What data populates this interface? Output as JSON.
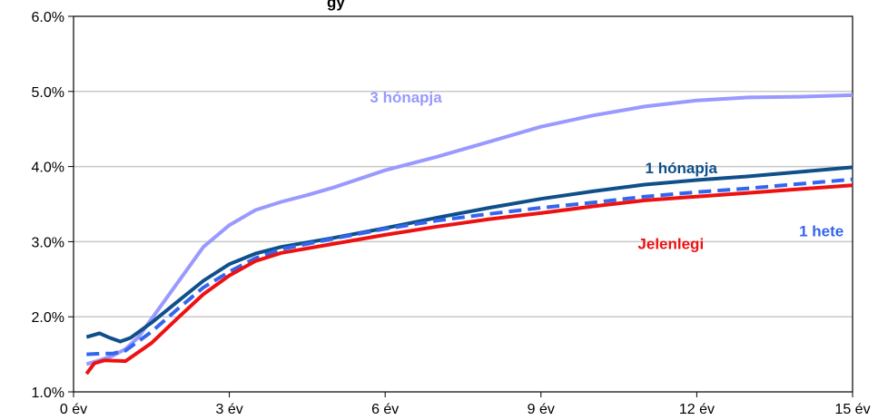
{
  "chart_data": {
    "type": "line",
    "title_fragment": "gy",
    "xlabel": "",
    "ylabel": "",
    "x_ticks": [
      "0 év",
      "3 év",
      "6 év",
      "9 év",
      "12 év",
      "15 év"
    ],
    "y_ticks": [
      "1.0%",
      "2.0%",
      "3.0%",
      "4.0%",
      "5.0%",
      "6.0%"
    ],
    "xlim": [
      0,
      15
    ],
    "ylim": [
      1.0,
      6.0
    ],
    "grid": "horizontal",
    "legend": "none (inline labels)",
    "series": [
      {
        "name": "3 hónapja",
        "color": "#9999ff",
        "dash": "solid",
        "points": [
          [
            0.25,
            1.37
          ],
          [
            0.5,
            1.42
          ],
          [
            0.75,
            1.48
          ],
          [
            1.0,
            1.57
          ],
          [
            1.25,
            1.73
          ],
          [
            1.5,
            1.97
          ],
          [
            2.0,
            2.45
          ],
          [
            2.5,
            2.93
          ],
          [
            3.0,
            3.22
          ],
          [
            3.5,
            3.42
          ],
          [
            4.0,
            3.53
          ],
          [
            4.5,
            3.62
          ],
          [
            5.0,
            3.72
          ],
          [
            6.0,
            3.95
          ],
          [
            7.0,
            4.13
          ],
          [
            8.0,
            4.33
          ],
          [
            9.0,
            4.53
          ],
          [
            10.0,
            4.68
          ],
          [
            11.0,
            4.8
          ],
          [
            12.0,
            4.88
          ],
          [
            13.0,
            4.92
          ],
          [
            14.0,
            4.93
          ],
          [
            15.0,
            4.95
          ]
        ]
      },
      {
        "name": "1 hónapja",
        "color": "#0f4f8a",
        "dash": "solid",
        "points": [
          [
            0.25,
            1.73
          ],
          [
            0.5,
            1.78
          ],
          [
            0.7,
            1.72
          ],
          [
            0.9,
            1.67
          ],
          [
            1.1,
            1.72
          ],
          [
            1.5,
            1.92
          ],
          [
            2.0,
            2.2
          ],
          [
            2.5,
            2.48
          ],
          [
            3.0,
            2.7
          ],
          [
            3.5,
            2.84
          ],
          [
            4.0,
            2.93
          ],
          [
            5.0,
            3.05
          ],
          [
            6.0,
            3.18
          ],
          [
            7.0,
            3.32
          ],
          [
            8.0,
            3.45
          ],
          [
            9.0,
            3.57
          ],
          [
            10.0,
            3.67
          ],
          [
            11.0,
            3.76
          ],
          [
            12.0,
            3.82
          ],
          [
            13.0,
            3.87
          ],
          [
            14.0,
            3.93
          ],
          [
            15.0,
            3.99
          ]
        ]
      },
      {
        "name": "1 hete",
        "color": "#3366ee",
        "dash": "dashed",
        "points": [
          [
            0.25,
            1.5
          ],
          [
            0.5,
            1.51
          ],
          [
            0.75,
            1.51
          ],
          [
            1.0,
            1.55
          ],
          [
            1.5,
            1.8
          ],
          [
            2.0,
            2.1
          ],
          [
            2.5,
            2.39
          ],
          [
            3.0,
            2.6
          ],
          [
            3.5,
            2.78
          ],
          [
            4.0,
            2.9
          ],
          [
            5.0,
            3.04
          ],
          [
            6.0,
            3.17
          ],
          [
            7.0,
            3.28
          ],
          [
            8.0,
            3.37
          ],
          [
            9.0,
            3.45
          ],
          [
            10.0,
            3.52
          ],
          [
            11.0,
            3.6
          ],
          [
            12.0,
            3.66
          ],
          [
            13.0,
            3.71
          ],
          [
            14.0,
            3.77
          ],
          [
            15.0,
            3.83
          ]
        ]
      },
      {
        "name": "Jelenlegi",
        "color": "#ee1111",
        "dash": "solid",
        "points": [
          [
            0.25,
            1.24
          ],
          [
            0.4,
            1.38
          ],
          [
            0.6,
            1.42
          ],
          [
            1.0,
            1.41
          ],
          [
            1.5,
            1.65
          ],
          [
            2.0,
            1.98
          ],
          [
            2.5,
            2.3
          ],
          [
            3.0,
            2.55
          ],
          [
            3.5,
            2.74
          ],
          [
            4.0,
            2.85
          ],
          [
            5.0,
            2.97
          ],
          [
            6.0,
            3.09
          ],
          [
            7.0,
            3.2
          ],
          [
            8.0,
            3.3
          ],
          [
            9.0,
            3.38
          ],
          [
            10.0,
            3.47
          ],
          [
            11.0,
            3.55
          ],
          [
            12.0,
            3.6
          ],
          [
            13.0,
            3.65
          ],
          [
            14.0,
            3.7
          ],
          [
            15.0,
            3.75
          ]
        ]
      }
    ],
    "annotations": [
      {
        "text": "3 hónapja",
        "series": "3 hónapja",
        "x": 6.4,
        "y": 4.85
      },
      {
        "text": "1 hónapja",
        "series": "1 hónapja",
        "x": 11.7,
        "y": 3.91
      },
      {
        "text": "1 hete",
        "series": "1 hete",
        "x": 14.4,
        "y": 3.07
      },
      {
        "text": "Jelenlegi",
        "series": "Jelenlegi",
        "x": 11.5,
        "y": 2.9
      }
    ]
  }
}
